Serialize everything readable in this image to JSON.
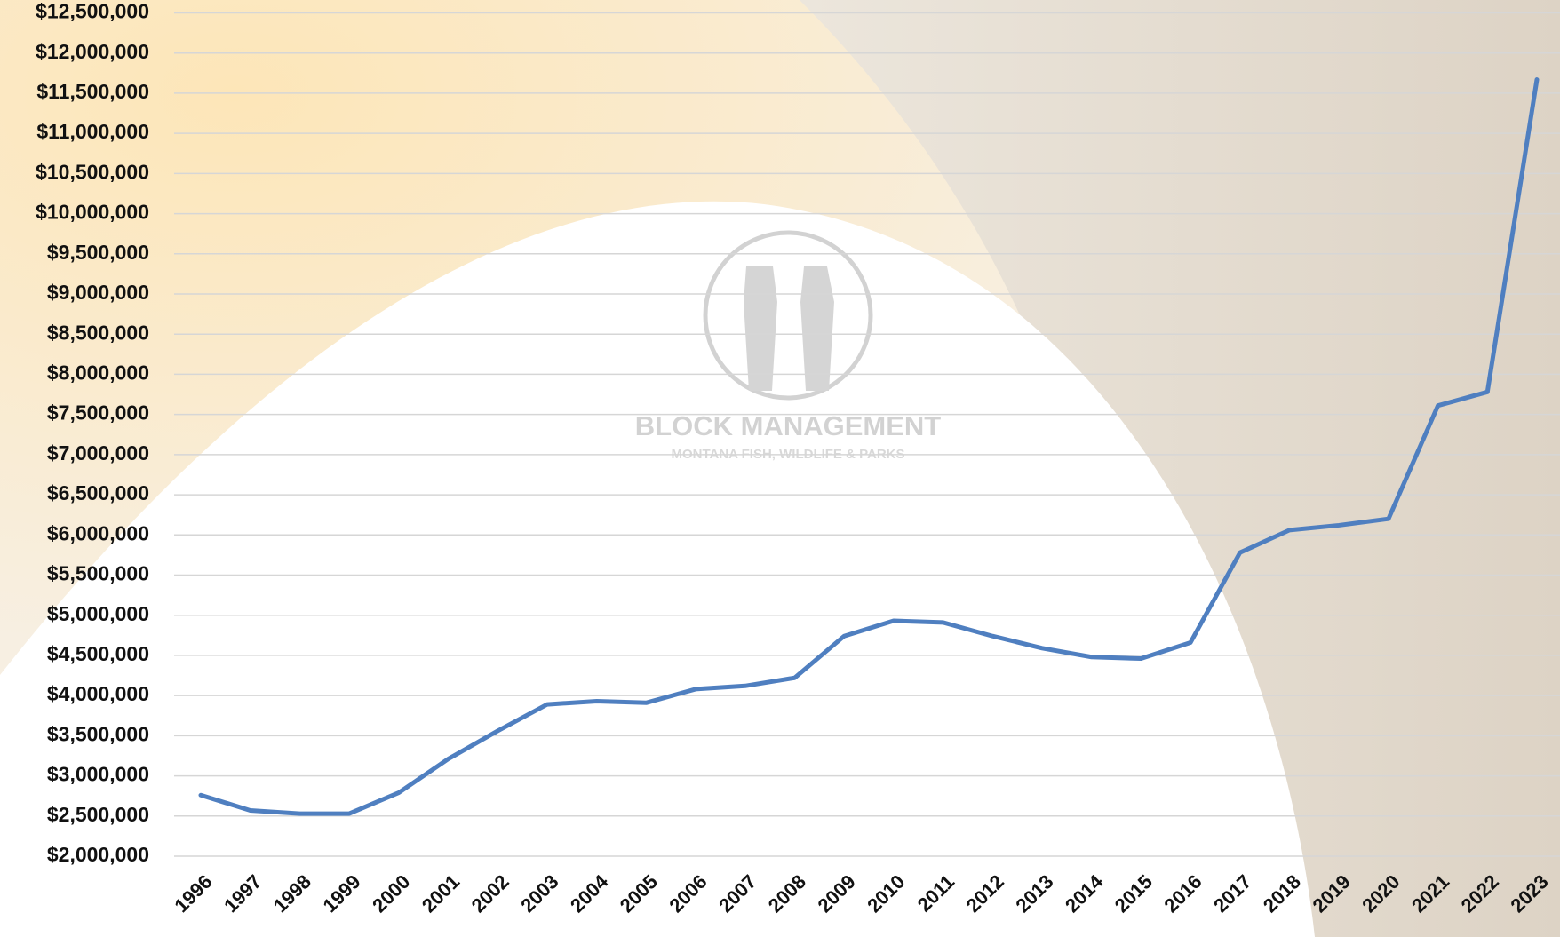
{
  "chart_data": {
    "type": "line",
    "watermark": {
      "title": "BLOCK MANAGEMENT",
      "subtitle": "MONTANA FISH, WILDLIFE & PARKS"
    },
    "categories": [
      "1996",
      "1997",
      "1998",
      "1999",
      "2000",
      "2001",
      "2002",
      "2003",
      "2004",
      "2005",
      "2006",
      "2007",
      "2008",
      "2009",
      "2010",
      "2011",
      "2012",
      "2013",
      "2014",
      "2015",
      "2016",
      "2017",
      "2018",
      "2019",
      "2020",
      "2021",
      "2022",
      "2023"
    ],
    "series": [
      {
        "name": "Block Management",
        "color": "#4f7fc0",
        "values": [
          2760000,
          2570000,
          2530000,
          2530000,
          2790000,
          3210000,
          3560000,
          3890000,
          3930000,
          3910000,
          4080000,
          4120000,
          4220000,
          4740000,
          4930000,
          4910000,
          4740000,
          4590000,
          4480000,
          4460000,
          4660000,
          5780000,
          6060000,
          6120000,
          6200000,
          7610000,
          7780000,
          11670000
        ]
      }
    ],
    "ylim": [
      2000000,
      12500000
    ],
    "yticks": [
      {
        "value": 2000000,
        "label": "$2,000,000"
      },
      {
        "value": 2500000,
        "label": "$2,500,000"
      },
      {
        "value": 3000000,
        "label": "$3,000,000"
      },
      {
        "value": 3500000,
        "label": "$3,500,000"
      },
      {
        "value": 4000000,
        "label": "$4,000,000"
      },
      {
        "value": 4500000,
        "label": "$4,500,000"
      },
      {
        "value": 5000000,
        "label": "$5,000,000"
      },
      {
        "value": 5500000,
        "label": "$5,500,000"
      },
      {
        "value": 6000000,
        "label": "$6,000,000"
      },
      {
        "value": 6500000,
        "label": "$6,500,000"
      },
      {
        "value": 7000000,
        "label": "$7,000,000"
      },
      {
        "value": 7500000,
        "label": "$7,500,000"
      },
      {
        "value": 8000000,
        "label": "$8,000,000"
      },
      {
        "value": 8500000,
        "label": "$8,500,000"
      },
      {
        "value": 9000000,
        "label": "$9,000,000"
      },
      {
        "value": 9500000,
        "label": "$9,500,000"
      },
      {
        "value": 10000000,
        "label": "$10,000,000"
      },
      {
        "value": 10500000,
        "label": "$10,500,000"
      },
      {
        "value": 11000000,
        "label": "$11,000,000"
      },
      {
        "value": 11500000,
        "label": "$11,500,000"
      },
      {
        "value": 12000000,
        "label": "$12,000,000"
      },
      {
        "value": 12500000,
        "label": "$12,500,000"
      }
    ],
    "grid": true
  }
}
